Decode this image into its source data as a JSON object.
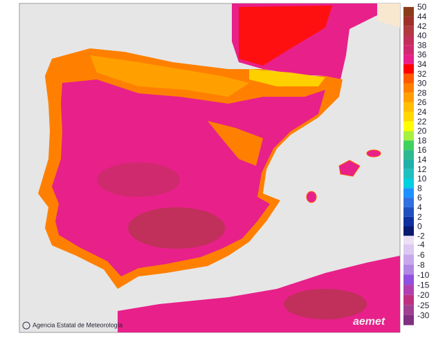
{
  "map": {
    "legend": {
      "items": [
        {
          "label": "50",
          "color": "#8b3a1a"
        },
        {
          "label": "44",
          "color": "#a0302a"
        },
        {
          "label": "42",
          "color": "#b03a40"
        },
        {
          "label": "40",
          "color": "#c0305a"
        },
        {
          "label": "38",
          "color": "#d02a6e"
        },
        {
          "label": "36",
          "color": "#e8208a"
        },
        {
          "label": "34",
          "color": "#ff0000"
        },
        {
          "label": "32",
          "color": "#ff5a00"
        },
        {
          "label": "30",
          "color": "#ff8000"
        },
        {
          "label": "28",
          "color": "#ffa000"
        },
        {
          "label": "26",
          "color": "#ffbe00"
        },
        {
          "label": "24",
          "color": "#ffd800"
        },
        {
          "label": "22",
          "color": "#ffff00"
        },
        {
          "label": "20",
          "color": "#a8f040"
        },
        {
          "label": "18",
          "color": "#40d060"
        },
        {
          "label": "16",
          "color": "#30b890"
        },
        {
          "label": "14",
          "color": "#20b0a8"
        },
        {
          "label": "12",
          "color": "#20c0c0"
        },
        {
          "label": "10",
          "color": "#00d0e0"
        },
        {
          "label": "8",
          "color": "#1e90ff"
        },
        {
          "label": "6",
          "color": "#3070e0"
        },
        {
          "label": "4",
          "color": "#2050c0"
        },
        {
          "label": "2",
          "color": "#1030a0"
        },
        {
          "label": "0",
          "color": "#0a1a70"
        },
        {
          "label": "-2",
          "color": "#ece0f4"
        },
        {
          "label": "-4",
          "color": "#dcc8f0"
        },
        {
          "label": "-6",
          "color": "#c8a8ec"
        },
        {
          "label": "-8",
          "color": "#b088e4"
        },
        {
          "label": "-10",
          "color": "#9050e0"
        },
        {
          "label": "-15",
          "color": "#b040b0"
        },
        {
          "label": "-20",
          "color": "#c03080"
        },
        {
          "label": "-25",
          "color": "#a04090"
        },
        {
          "label": "-30",
          "color": "#803080"
        }
      ]
    },
    "credit": "Agencia Estatal de Meteorología",
    "logo": "aemet"
  }
}
